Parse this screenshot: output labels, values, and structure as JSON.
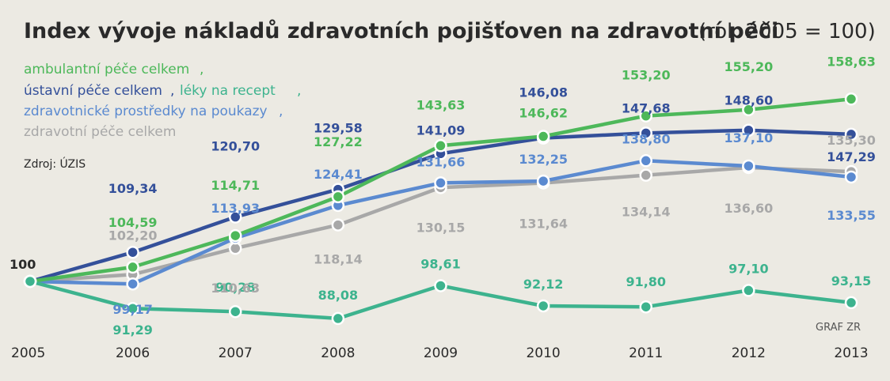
{
  "chart_data": {
    "type": "line",
    "title": "Index vývoje nákladů zdravotních pojišťoven na zdravotní péči",
    "subtitle": "(rok 2005 = 100)",
    "source": "Zdroj: ÚZIS",
    "credit": "GRAF ZR",
    "x": [
      "2005",
      "2006",
      "2007",
      "2008",
      "2009",
      "2010",
      "2011",
      "2012",
      "2013"
    ],
    "ylim": [
      85,
      162
    ],
    "grid": false,
    "legend_position": "top-left",
    "base_label": "100",
    "series": [
      {
        "name": "ambulantní péče celkem",
        "color": "#4db85a",
        "values": [
          100,
          104.59,
          114.71,
          127.22,
          143.63,
          146.62,
          153.2,
          155.2,
          158.63
        ],
        "labels": [
          "",
          "104,59",
          "114,71",
          "127,22",
          "143,63",
          "146,62",
          "153,20",
          "155,20",
          "158,63"
        ]
      },
      {
        "name": "ústavní péče celkem",
        "color": "#34509a",
        "values": [
          100,
          109.34,
          120.7,
          129.58,
          141.09,
          146.08,
          147.68,
          148.6,
          147.29
        ],
        "labels": [
          "",
          "109,34",
          "120,70",
          "129,58",
          "141,09",
          "146,08",
          "147,68",
          "148,60",
          "147,29"
        ]
      },
      {
        "name": "léky na recept",
        "color": "#3db38e",
        "values": [
          100,
          91.29,
          90.28,
          88.08,
          98.61,
          92.12,
          91.8,
          97.1,
          93.15
        ],
        "labels": [
          "",
          "91,29",
          "90,28",
          "88,08",
          "98,61",
          "92,12",
          "91,80",
          "97,10",
          "93,15"
        ]
      },
      {
        "name": "zdravotnické prostředky na poukazy",
        "color": "#5b8ad0",
        "values": [
          100,
          99.17,
          113.93,
          124.41,
          131.66,
          132.25,
          138.8,
          137.1,
          133.55
        ],
        "labels": [
          "",
          "99,17",
          "113,93",
          "124,41",
          "131,66",
          "132,25",
          "138,80",
          "137,10",
          "133,55"
        ]
      },
      {
        "name": "zdravotní péče celkem",
        "color": "#a8a8a8",
        "values": [
          100,
          102.2,
          110.63,
          118.14,
          130.15,
          131.64,
          134.14,
          136.6,
          135.3
        ],
        "labels": [
          "",
          "102,20",
          "110,63",
          "118,14",
          "130,15",
          "131,64",
          "134,14",
          "136,60",
          "135,30"
        ]
      }
    ]
  }
}
